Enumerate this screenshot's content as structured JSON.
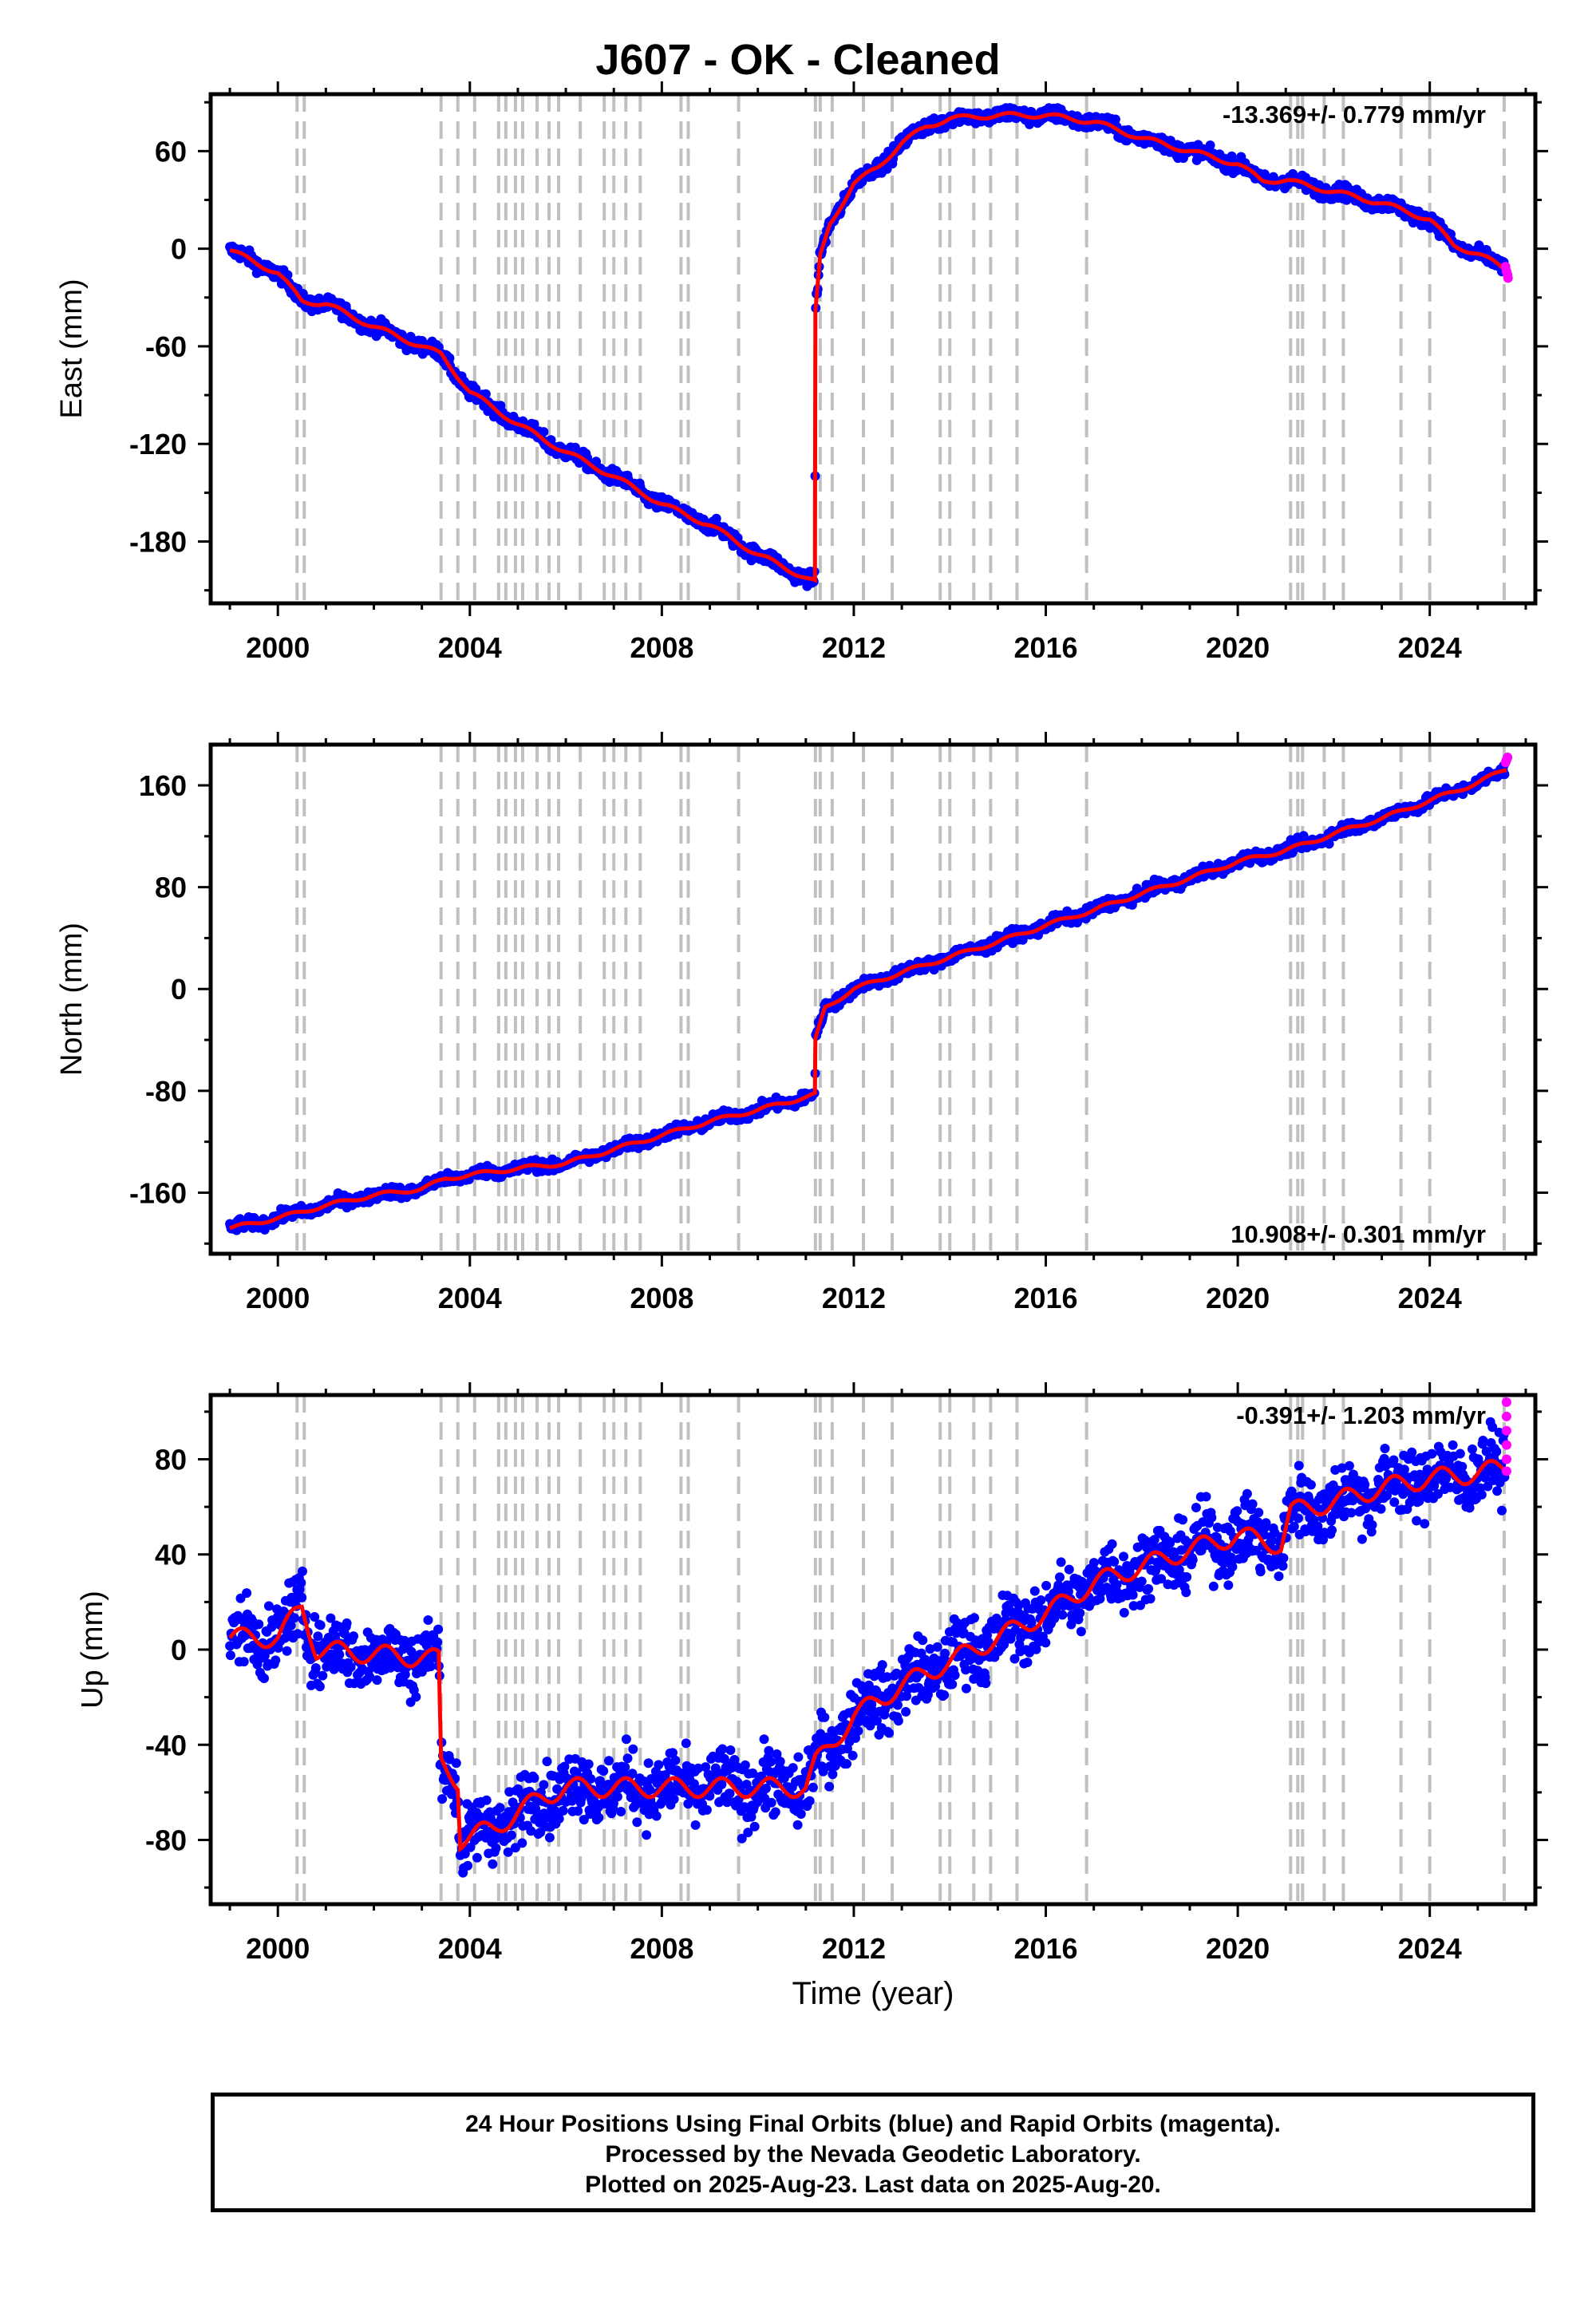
{
  "title": "J607  - OK - Cleaned",
  "xlabel": "Time (year)",
  "colors": {
    "final": "#0000ff",
    "rapid": "#ff00ff",
    "model": "#ff0000",
    "event": "#c0c0c0",
    "axis": "#000000"
  },
  "footer": {
    "line1": "24 Hour Positions Using Final Orbits (blue) and Rapid Orbits (magenta).",
    "line2": "Processed by the Nevada Geodetic Laboratory.",
    "line3": "Plotted on 2025-Aug-23. Last data on 2025-Aug-20."
  },
  "chart_data": [
    {
      "type": "scatter",
      "component": "east",
      "ylabel": "East (mm)",
      "rate_label": "-13.369+/- 0.779 mm/yr",
      "xlim": [
        1998.6,
        2026.2
      ],
      "ylim": [
        -218,
        95
      ],
      "xticks": [
        2000,
        2004,
        2008,
        2012,
        2016,
        2020,
        2024
      ],
      "yticks": [
        60,
        0,
        -60,
        -120,
        -180
      ],
      "event_lines": [
        2000.4,
        2000.55,
        2003.4,
        2003.75,
        2004.1,
        2004.6,
        2004.75,
        2004.95,
        2005.1,
        2005.4,
        2005.65,
        2005.85,
        2006.3,
        2006.8,
        2007.0,
        2007.25,
        2007.55,
        2008.4,
        2008.55,
        2009.6,
        2011.2,
        2011.3,
        2011.55,
        2012.2,
        2012.8,
        2013.8,
        2014.0,
        2014.5,
        2014.85,
        2015.4,
        2016.85,
        2021.1,
        2021.25,
        2021.35,
        2021.8,
        2022.2,
        2023.4,
        2024.0,
        2025.55
      ],
      "model_series": [
        {
          "x": 1999.0,
          "y": -1
        },
        {
          "x": 2000.0,
          "y": -15
        },
        {
          "x": 2000.5,
          "y": -32
        },
        {
          "x": 2001.0,
          "y": -34
        },
        {
          "x": 2002.0,
          "y": -48
        },
        {
          "x": 2003.0,
          "y": -60
        },
        {
          "x": 2003.4,
          "y": -65
        },
        {
          "x": 2004.0,
          "y": -88
        },
        {
          "x": 2005.0,
          "y": -108
        },
        {
          "x": 2006.0,
          "y": -125
        },
        {
          "x": 2007.0,
          "y": -140
        },
        {
          "x": 2008.0,
          "y": -157
        },
        {
          "x": 2009.0,
          "y": -170
        },
        {
          "x": 2010.0,
          "y": -188
        },
        {
          "x": 2011.19,
          "y": -205
        },
        {
          "x": 2011.2,
          "y": -40
        },
        {
          "x": 2011.3,
          "y": -5
        },
        {
          "x": 2011.5,
          "y": 15
        },
        {
          "x": 2012.0,
          "y": 40
        },
        {
          "x": 2012.5,
          "y": 50
        },
        {
          "x": 2013.0,
          "y": 65
        },
        {
          "x": 2013.5,
          "y": 75
        },
        {
          "x": 2014.0,
          "y": 80
        },
        {
          "x": 2015.0,
          "y": 82
        },
        {
          "x": 2016.0,
          "y": 82
        },
        {
          "x": 2017.0,
          "y": 78
        },
        {
          "x": 2018.0,
          "y": 68
        },
        {
          "x": 2019.0,
          "y": 60
        },
        {
          "x": 2020.0,
          "y": 52
        },
        {
          "x": 2020.5,
          "y": 42
        },
        {
          "x": 2021.0,
          "y": 42
        },
        {
          "x": 2022.0,
          "y": 35
        },
        {
          "x": 2023.0,
          "y": 28
        },
        {
          "x": 2024.0,
          "y": 18
        },
        {
          "x": 2024.5,
          "y": 2
        },
        {
          "x": 2025.0,
          "y": -3
        },
        {
          "x": 2025.6,
          "y": -13
        }
      ],
      "rapid_points": [
        {
          "x": 2025.58,
          "y": -11
        },
        {
          "x": 2025.6,
          "y": -14
        },
        {
          "x": 2025.62,
          "y": -16
        },
        {
          "x": 2025.63,
          "y": -18
        }
      ]
    },
    {
      "type": "scatter",
      "component": "north",
      "ylabel": "North (mm)",
      "rate_label": "10.908+/- 0.301 mm/yr",
      "xlim": [
        1998.6,
        2026.2
      ],
      "ylim": [
        -208,
        192
      ],
      "xticks": [
        2000,
        2004,
        2008,
        2012,
        2016,
        2020,
        2024
      ],
      "yticks": [
        160,
        80,
        0,
        -80,
        -160
      ],
      "event_lines": [
        2000.4,
        2000.55,
        2003.4,
        2003.75,
        2004.1,
        2004.6,
        2004.75,
        2004.95,
        2005.1,
        2005.4,
        2005.65,
        2005.85,
        2006.3,
        2006.8,
        2007.0,
        2007.25,
        2007.55,
        2008.4,
        2008.55,
        2009.6,
        2011.2,
        2011.3,
        2011.55,
        2012.2,
        2012.8,
        2013.8,
        2014.0,
        2014.5,
        2014.85,
        2015.4,
        2016.85,
        2021.1,
        2021.25,
        2021.35,
        2021.8,
        2022.2,
        2023.4,
        2024.0,
        2025.55
      ],
      "model_series": [
        {
          "x": 1999.0,
          "y": -188
        },
        {
          "x": 2000.0,
          "y": -180
        },
        {
          "x": 2001.0,
          "y": -170
        },
        {
          "x": 2002.0,
          "y": -162
        },
        {
          "x": 2003.0,
          "y": -157
        },
        {
          "x": 2003.5,
          "y": -149
        },
        {
          "x": 2004.0,
          "y": -146
        },
        {
          "x": 2005.0,
          "y": -141
        },
        {
          "x": 2006.0,
          "y": -137
        },
        {
          "x": 2007.0,
          "y": -126
        },
        {
          "x": 2008.0,
          "y": -115
        },
        {
          "x": 2009.0,
          "y": -104
        },
        {
          "x": 2010.0,
          "y": -95
        },
        {
          "x": 2011.19,
          "y": -83
        },
        {
          "x": 2011.2,
          "y": -40
        },
        {
          "x": 2011.4,
          "y": -15
        },
        {
          "x": 2012.0,
          "y": 0
        },
        {
          "x": 2013.0,
          "y": 13
        },
        {
          "x": 2014.0,
          "y": 25
        },
        {
          "x": 2015.0,
          "y": 37
        },
        {
          "x": 2016.0,
          "y": 50
        },
        {
          "x": 2017.0,
          "y": 62
        },
        {
          "x": 2018.0,
          "y": 75
        },
        {
          "x": 2019.0,
          "y": 87
        },
        {
          "x": 2020.0,
          "y": 100
        },
        {
          "x": 2020.9,
          "y": 108
        },
        {
          "x": 2021.5,
          "y": 115
        },
        {
          "x": 2022.0,
          "y": 122
        },
        {
          "x": 2023.0,
          "y": 134
        },
        {
          "x": 2024.0,
          "y": 148
        },
        {
          "x": 2025.0,
          "y": 162
        },
        {
          "x": 2025.6,
          "y": 173
        }
      ],
      "rapid_points": [
        {
          "x": 2025.58,
          "y": 178
        },
        {
          "x": 2025.6,
          "y": 180
        },
        {
          "x": 2025.62,
          "y": 182
        }
      ]
    },
    {
      "type": "scatter",
      "component": "up",
      "ylabel": "Up (mm)",
      "rate_label": "-0.391+/- 1.203 mm/yr",
      "xlim": [
        1998.6,
        2026.2
      ],
      "ylim": [
        -107,
        107
      ],
      "xticks": [
        2000,
        2004,
        2008,
        2012,
        2016,
        2020,
        2024
      ],
      "yticks": [
        80,
        40,
        0,
        -40,
        -80
      ],
      "event_lines": [
        2000.4,
        2000.55,
        2003.4,
        2003.75,
        2004.1,
        2004.6,
        2004.75,
        2004.95,
        2005.1,
        2005.4,
        2005.65,
        2005.85,
        2006.3,
        2006.8,
        2007.0,
        2007.25,
        2007.55,
        2008.4,
        2008.55,
        2009.6,
        2011.2,
        2011.3,
        2011.55,
        2012.2,
        2012.8,
        2013.8,
        2014.0,
        2014.5,
        2014.85,
        2015.4,
        2016.85,
        2021.1,
        2021.25,
        2021.35,
        2021.8,
        2022.2,
        2023.4,
        2024.0,
        2025.55
      ],
      "model_series": [
        {
          "x": 1999.0,
          "y": 5
        },
        {
          "x": 2000.0,
          "y": 5
        },
        {
          "x": 2000.5,
          "y": 18
        },
        {
          "x": 2000.8,
          "y": 0
        },
        {
          "x": 2003.35,
          "y": -4
        },
        {
          "x": 2003.4,
          "y": -48
        },
        {
          "x": 2003.75,
          "y": -55
        },
        {
          "x": 2003.8,
          "y": -80
        },
        {
          "x": 2004.5,
          "y": -75
        },
        {
          "x": 2005.5,
          "y": -62
        },
        {
          "x": 2006.0,
          "y": -58
        },
        {
          "x": 2011.0,
          "y": -58
        },
        {
          "x": 2011.2,
          "y": -48
        },
        {
          "x": 2012.0,
          "y": -28
        },
        {
          "x": 2013.0,
          "y": -15
        },
        {
          "x": 2014.0,
          "y": -5
        },
        {
          "x": 2015.0,
          "y": 5
        },
        {
          "x": 2016.0,
          "y": 15
        },
        {
          "x": 2017.0,
          "y": 28
        },
        {
          "x": 2018.0,
          "y": 35
        },
        {
          "x": 2019.0,
          "y": 42
        },
        {
          "x": 2020.0,
          "y": 48
        },
        {
          "x": 2020.9,
          "y": 44
        },
        {
          "x": 2021.1,
          "y": 58
        },
        {
          "x": 2022.0,
          "y": 62
        },
        {
          "x": 2023.0,
          "y": 68
        },
        {
          "x": 2024.0,
          "y": 72
        },
        {
          "x": 2025.0,
          "y": 74
        },
        {
          "x": 2025.6,
          "y": 77
        }
      ],
      "rapid_points": [
        {
          "x": 2025.6,
          "y": 104
        },
        {
          "x": 2025.6,
          "y": 98
        },
        {
          "x": 2025.6,
          "y": 92
        },
        {
          "x": 2025.6,
          "y": 86
        },
        {
          "x": 2025.6,
          "y": 80
        },
        {
          "x": 2025.6,
          "y": 75
        }
      ]
    }
  ]
}
